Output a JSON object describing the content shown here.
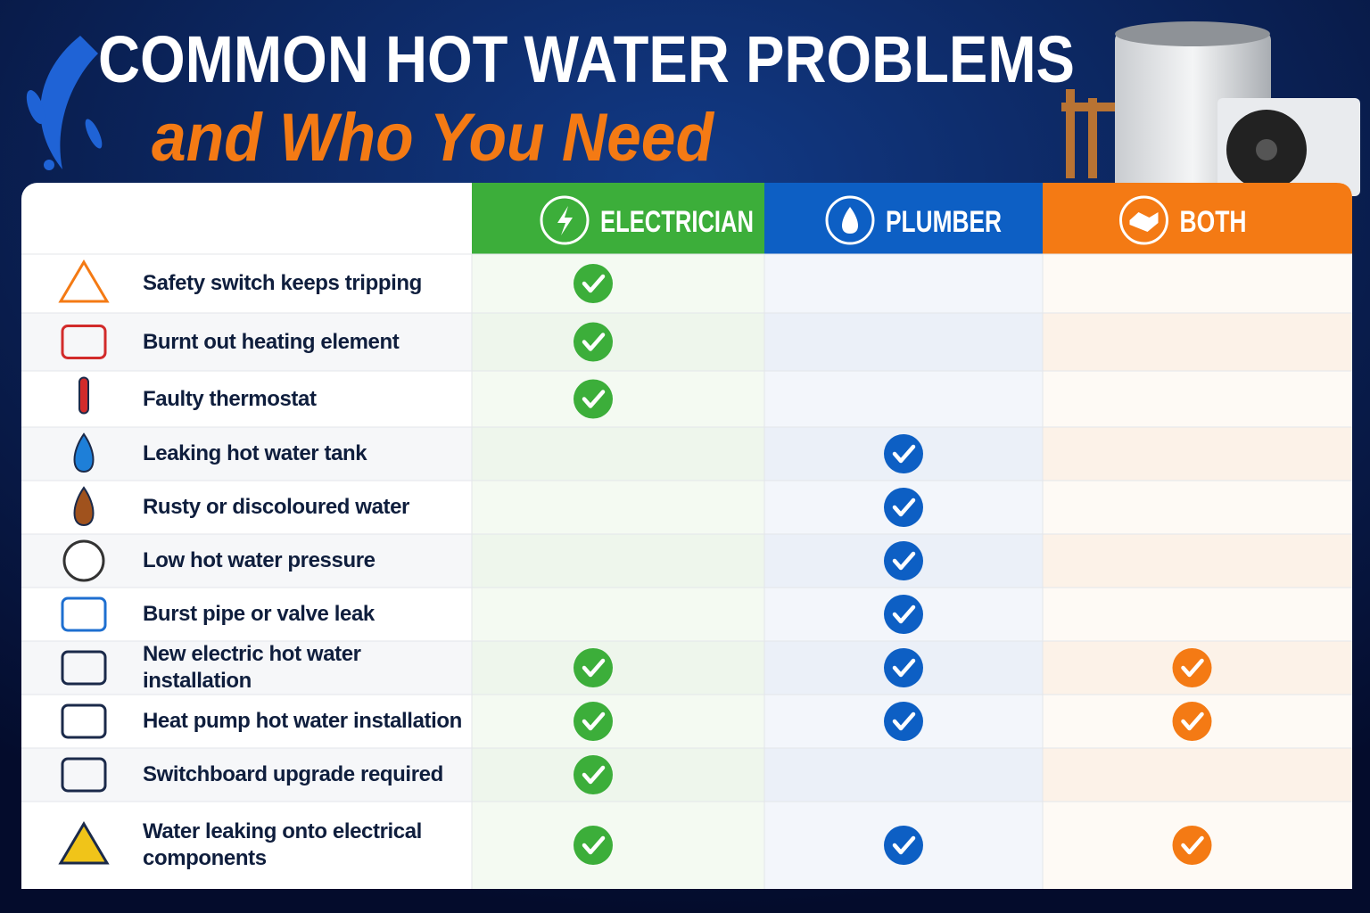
{
  "header": {
    "title": "COMMON HOT WATER PROBLEMS",
    "subtitle": "and Who You Need"
  },
  "table": {
    "columns": [
      "ELECTRICIAN",
      "PLUMBER",
      "BOTH"
    ],
    "rows": [
      {
        "label": "Safety switch keeps tripping",
        "checks": [
          true,
          false,
          false
        ]
      },
      {
        "label": "Burnt out heating element",
        "checks": [
          true,
          false,
          false
        ]
      },
      {
        "label": "Faulty thermostat",
        "checks": [
          true,
          false,
          false
        ]
      },
      {
        "label": "Leaking hot water tank",
        "checks": [
          false,
          true,
          false
        ]
      },
      {
        "label": "Rusty or discoloured water",
        "checks": [
          false,
          true,
          false
        ]
      },
      {
        "label": "Low hot water pressure",
        "checks": [
          false,
          true,
          false
        ]
      },
      {
        "label": "Burst pipe or valve leak",
        "checks": [
          false,
          true,
          false
        ]
      },
      {
        "label": "New electric hot water installation",
        "checks": [
          true,
          true,
          true
        ]
      },
      {
        "label": "Heat pump hot water installation",
        "checks": [
          true,
          true,
          true
        ]
      },
      {
        "label": "Switchboard upgrade required",
        "checks": [
          true,
          false,
          false
        ]
      },
      {
        "label": "Water leaking onto electrical components",
        "checks": [
          true,
          true,
          true
        ]
      }
    ]
  }
}
